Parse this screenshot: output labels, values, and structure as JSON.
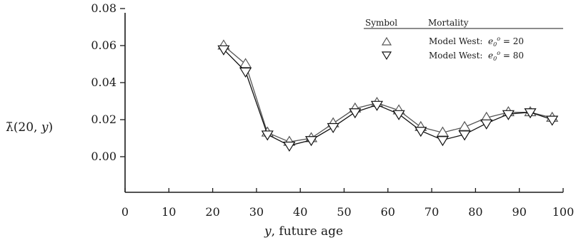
{
  "chart_data": {
    "type": "line",
    "title": "",
    "xlabel": "y, future age",
    "ylabel": "λ̄(20, y)",
    "xlim": [
      0,
      100
    ],
    "ylim": [
      -0.02,
      0.08
    ],
    "x_ticks": [
      0,
      10,
      20,
      30,
      40,
      50,
      60,
      70,
      80,
      90,
      100
    ],
    "x_tick_labels": [
      "0",
      "10",
      "20",
      "30",
      "40",
      "50",
      "60",
      "70",
      "80",
      "90",
      "100"
    ],
    "y_ticks": [
      0.0,
      0.02,
      0.04,
      0.06,
      0.08
    ],
    "y_tick_labels": [
      "0.00",
      "0.02",
      "0.04",
      "0.06",
      "0.08"
    ],
    "grid": false,
    "legend": {
      "placement": "top-right",
      "header_symbol": "Symbol",
      "header_mortality": "Mortality",
      "entries": [
        {
          "symbol": "up-triangle",
          "label_prefix": "Model West:",
          "label_math": "e₀⁰ = 20"
        },
        {
          "symbol": "down-triangle",
          "label_prefix": "Model West:",
          "label_math": "e₀⁰ = 80"
        }
      ]
    },
    "x": [
      22.5,
      27.5,
      32.5,
      37.5,
      42.5,
      47.5,
      52.5,
      57.5,
      62.5,
      67.5,
      72.5,
      77.5,
      82.5,
      87.5,
      92.5,
      97.5
    ],
    "series": [
      {
        "name": "Model West: e0 = 20",
        "marker": "up-triangle",
        "color": "#555555",
        "values": [
          0.06,
          0.05,
          0.013,
          0.008,
          0.01,
          0.018,
          0.026,
          0.029,
          0.025,
          0.016,
          0.013,
          0.016,
          0.021,
          0.024,
          0.024,
          0.021
        ]
      },
      {
        "name": "Model West: e0 = 80",
        "marker": "down-triangle",
        "color": "#111111",
        "values": [
          0.058,
          0.046,
          0.012,
          0.006,
          0.009,
          0.016,
          0.024,
          0.028,
          0.023,
          0.014,
          0.009,
          0.012,
          0.018,
          0.023,
          0.024,
          0.02
        ]
      }
    ]
  }
}
